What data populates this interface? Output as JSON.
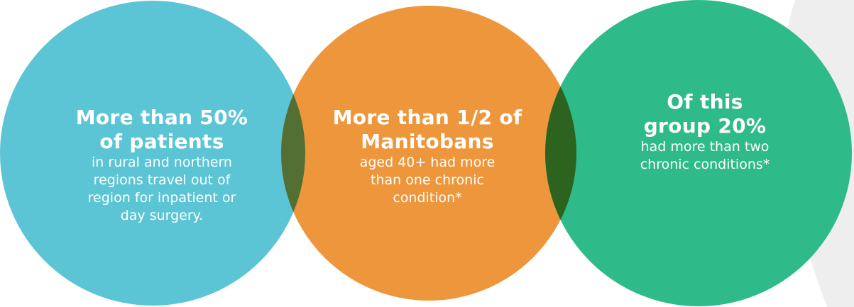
{
  "colors": {
    "background": "#ffffff",
    "background_shape": "#eeeeee",
    "circle_blue": "#5bc5d5",
    "circle_orange": "#ee963b",
    "circle_green": "#2fba8a",
    "overlap_blue_orange": "#546f34",
    "overlap_orange_green": "#2b631f",
    "text": "#ffffff"
  },
  "stats": [
    {
      "headline_lines": [
        "More than 50%",
        "of patients"
      ],
      "body_lines": [
        "in rural and northern",
        "regions travel out of",
        "region for inpatient or",
        "day surgery."
      ]
    },
    {
      "headline_lines": [
        "More than 1/2 of",
        "Manitobans"
      ],
      "body_lines": [
        "aged 40+ had more",
        "than one chronic",
        "condition*"
      ]
    },
    {
      "headline_lines": [
        "Of this",
        "group 20%"
      ],
      "body_lines": [
        "had more than two",
        "chronic conditions*"
      ]
    }
  ]
}
